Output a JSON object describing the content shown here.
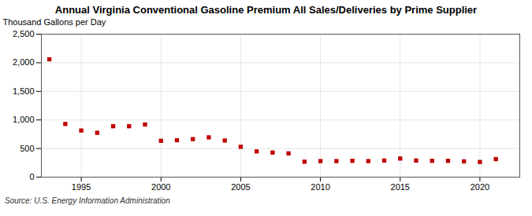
{
  "chart_data": {
    "type": "scatter",
    "title": "Annual Virginia Conventional Gasoline Premium All Sales/Deliveries by Prime Supplier",
    "ylabel": "Thousand Gallons per Day",
    "caption": "Source: U.S. Energy Information Administration",
    "x": [
      1993,
      1994,
      1995,
      1996,
      1997,
      1998,
      1999,
      2000,
      2001,
      2002,
      2003,
      2004,
      2005,
      2006,
      2007,
      2008,
      2009,
      2010,
      2011,
      2012,
      2013,
      2014,
      2015,
      2016,
      2017,
      2018,
      2019,
      2020,
      2021
    ],
    "values": [
      2060,
      930,
      815,
      775,
      890,
      890,
      920,
      635,
      645,
      665,
      695,
      640,
      530,
      450,
      430,
      415,
      270,
      280,
      280,
      285,
      280,
      290,
      325,
      290,
      285,
      285,
      275,
      265,
      315
    ],
    "color": "#c00000",
    "marker": "square",
    "xlim": [
      1992.5,
      2022.5
    ],
    "xticks": [
      1995,
      2000,
      2005,
      2010,
      2015,
      2020
    ],
    "ylim": [
      0,
      2500
    ],
    "yticks": [
      0,
      500,
      {
        "value": 1000,
        "label": "1,000"
      },
      {
        "value": 1500,
        "label": "1,500"
      },
      {
        "value": 2000,
        "label": "2,000"
      },
      {
        "value": 2500,
        "label": "2,500"
      }
    ],
    "grid": true
  }
}
